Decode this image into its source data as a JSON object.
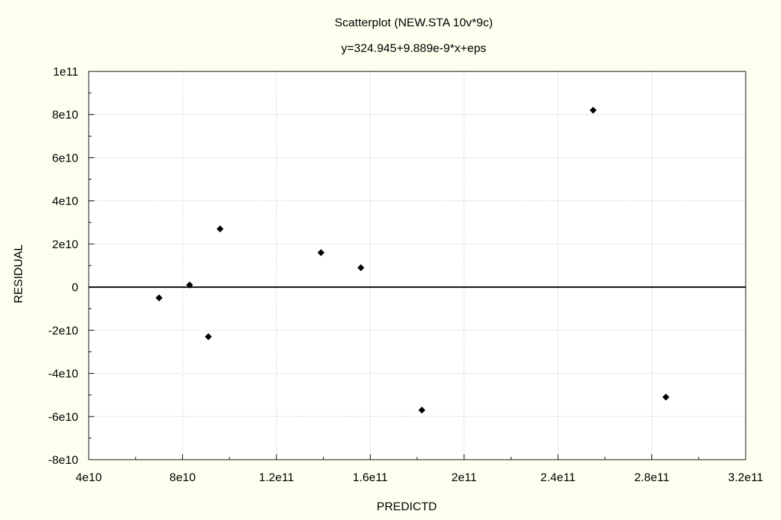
{
  "colors": {
    "background": "#fffff0",
    "plot_area": "#ffffff",
    "grid": "#b8b8b8",
    "axis": "#000000",
    "marker": "#000000",
    "zero_line": "#000000"
  },
  "chart_data": {
    "type": "scatter",
    "title": "Scatterplot (NEW.STA 10v*9c)",
    "subtitle": "y=324.945+9.889e-9*x+eps",
    "xlabel": "PREDICTD",
    "ylabel": "RESIDUAL",
    "xlim": [
      40000000000,
      320000000000
    ],
    "ylim": [
      -80000000000,
      100000000000
    ],
    "grid": true,
    "x_ticks": [
      40000000000,
      80000000000,
      120000000000,
      160000000000,
      200000000000,
      240000000000,
      280000000000,
      320000000000
    ],
    "x_tick_labels": [
      "4e10",
      "8e10",
      "1.2e11",
      "1.6e11",
      "2e11",
      "2.4e11",
      "2.8e11",
      "3.2e11"
    ],
    "y_ticks": [
      100000000000,
      80000000000,
      60000000000,
      40000000000,
      20000000000,
      0,
      -20000000000,
      -40000000000,
      -60000000000,
      -80000000000
    ],
    "y_tick_labels": [
      "1e11",
      "8e10",
      "6e10",
      "4e10",
      "2e10",
      "0",
      "-2e10",
      "-4e10",
      "-6e10",
      "-8e10"
    ],
    "reference_line_y": 0,
    "marker": "diamond",
    "points": [
      {
        "x": 70000000000,
        "y": -5000000000
      },
      {
        "x": 83000000000,
        "y": 1000000000
      },
      {
        "x": 91000000000,
        "y": -23000000000
      },
      {
        "x": 96000000000,
        "y": 27000000000
      },
      {
        "x": 139000000000,
        "y": 16000000000
      },
      {
        "x": 156000000000,
        "y": 9000000000
      },
      {
        "x": 182000000000,
        "y": -57000000000
      },
      {
        "x": 255000000000,
        "y": 82000000000
      },
      {
        "x": 286000000000,
        "y": -51000000000
      }
    ]
  }
}
